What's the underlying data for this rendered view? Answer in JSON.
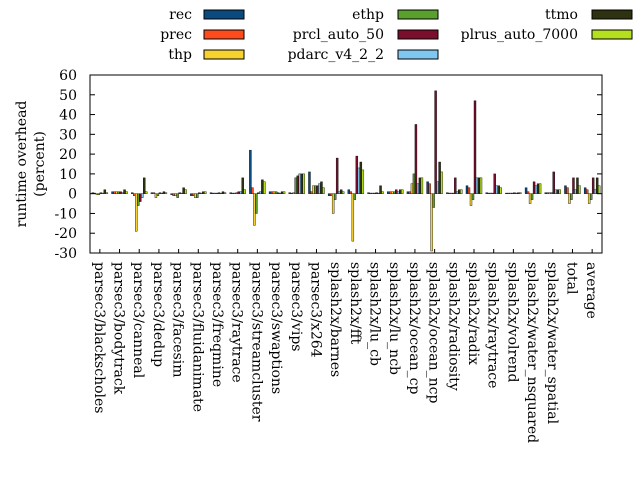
{
  "chart_data": {
    "type": "bar",
    "ylabel": "runtime overhead\n(percent)",
    "xlabel": "",
    "ylim": [
      -30,
      60
    ],
    "yticks": [
      -30,
      -20,
      -10,
      0,
      10,
      20,
      30,
      40,
      50,
      60
    ],
    "grid": false,
    "legend_position": "top",
    "categories": [
      "parsec3/blackscholes",
      "parsec3/bodytrack",
      "parsec3/canneal",
      "parsec3/dedup",
      "parsec3/facesim",
      "parsec3/fluidanimate",
      "parsec3/freqmine",
      "parsec3/raytrace",
      "parsec3/streamcluster",
      "parsec3/swaptions",
      "parsec3/vips",
      "parsec3/x264",
      "splash2x/barnes",
      "splash2x/fft",
      "splash2x/lu_cb",
      "splash2x/lu_ncb",
      "splash2x/ocean_cp",
      "splash2x/ocean_ncp",
      "splash2x/radiosity",
      "splash2x/radix",
      "splash2x/raytrace",
      "splash2x/volrend",
      "splash2x/water_nsquared",
      "splash2x/water_spatial",
      "total",
      "average"
    ],
    "series": [
      {
        "name": "rec",
        "color": "#0b4a7e",
        "values": [
          0.5,
          1,
          0.5,
          0.5,
          -0.5,
          -1,
          0.5,
          0.5,
          22,
          1,
          0.5,
          11,
          -1,
          2,
          0.5,
          1,
          1,
          6,
          0.5,
          4,
          0.5,
          0.3,
          3,
          0.5,
          4,
          3
        ]
      },
      {
        "name": "prec",
        "color": "#ff4a1c",
        "values": [
          0.3,
          1,
          -1,
          0.5,
          -1,
          -1,
          0.3,
          0.3,
          3,
          1,
          0.3,
          1,
          -1,
          1,
          0.3,
          1,
          1,
          5,
          0.3,
          3,
          0.3,
          0.3,
          1,
          0.5,
          3,
          2
        ]
      },
      {
        "name": "thp",
        "color": "#f7d22e",
        "values": [
          -0.5,
          1,
          -19,
          -2,
          -1,
          -2,
          0.3,
          0.3,
          -16,
          1,
          0.5,
          4,
          -10,
          -24,
          0.3,
          1,
          5,
          -29,
          0.3,
          -6,
          0.3,
          0.3,
          -5,
          0.5,
          -5,
          -5
        ]
      },
      {
        "name": "ethp",
        "color": "#5aa02c",
        "values": [
          -0.5,
          1,
          -6,
          -1,
          -2,
          -2,
          0.3,
          0.5,
          -10,
          1,
          8,
          4,
          -3,
          -3,
          0.3,
          1,
          10,
          -7,
          0.3,
          -3,
          0.3,
          0.3,
          -3,
          0.5,
          -3,
          -3
        ]
      },
      {
        "name": "prcl_auto_50",
        "color": "#7b0e2c",
        "values": [
          0.5,
          1,
          -4,
          0.5,
          0.5,
          0.5,
          0.5,
          1,
          0.5,
          0.5,
          9,
          4,
          18,
          19,
          0.5,
          2,
          35,
          52,
          8,
          47,
          10,
          0.5,
          6,
          11,
          8,
          8
        ]
      },
      {
        "name": "pdarc_v4_2_2",
        "color": "#7fc7f0",
        "values": [
          0.3,
          0.5,
          -2,
          0.3,
          0.3,
          0.3,
          0.3,
          1,
          1,
          0.3,
          10,
          5,
          1,
          13,
          0.3,
          1,
          5,
          6,
          1,
          8,
          4,
          0.3,
          4,
          2,
          2,
          2
        ]
      },
      {
        "name": "ttmo",
        "color": "#2e3210",
        "values": [
          2,
          2,
          8,
          1,
          3,
          1,
          1,
          8,
          7,
          1,
          10,
          6,
          2,
          16,
          4,
          2,
          8,
          16,
          2,
          8,
          4,
          0.5,
          5,
          2,
          8,
          8
        ]
      },
      {
        "name": "plrus_auto_7000",
        "color": "#b4e01e",
        "values": [
          0.5,
          1,
          1,
          0.5,
          2,
          1,
          0.5,
          2,
          6,
          1,
          10,
          3,
          1,
          12,
          1,
          2,
          8,
          11,
          2,
          8,
          3,
          0.5,
          5,
          2,
          4,
          4
        ]
      }
    ]
  }
}
